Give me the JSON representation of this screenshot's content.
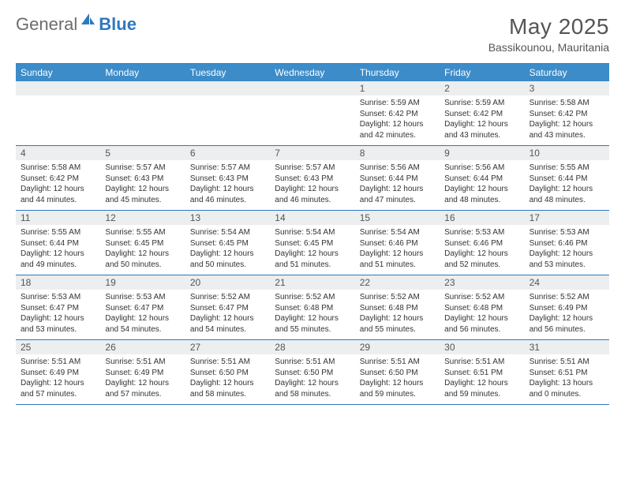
{
  "brand": {
    "general": "General",
    "blue": "Blue"
  },
  "header": {
    "title": "May 2025",
    "location": "Bassikounou, Mauritania"
  },
  "colors": {
    "accent": "#2f78bd",
    "header_bg": "#3c8cc9",
    "stripe": "#eceeef",
    "text": "#333333",
    "muted": "#555555"
  },
  "calendar": {
    "day_names": [
      "Sunday",
      "Monday",
      "Tuesday",
      "Wednesday",
      "Thursday",
      "Friday",
      "Saturday"
    ],
    "weeks": [
      [
        null,
        null,
        null,
        null,
        {
          "d": "1",
          "sr": "5:59 AM",
          "ss": "6:42 PM",
          "dl": "12 hours and 42 minutes."
        },
        {
          "d": "2",
          "sr": "5:59 AM",
          "ss": "6:42 PM",
          "dl": "12 hours and 43 minutes."
        },
        {
          "d": "3",
          "sr": "5:58 AM",
          "ss": "6:42 PM",
          "dl": "12 hours and 43 minutes."
        }
      ],
      [
        {
          "d": "4",
          "sr": "5:58 AM",
          "ss": "6:42 PM",
          "dl": "12 hours and 44 minutes."
        },
        {
          "d": "5",
          "sr": "5:57 AM",
          "ss": "6:43 PM",
          "dl": "12 hours and 45 minutes."
        },
        {
          "d": "6",
          "sr": "5:57 AM",
          "ss": "6:43 PM",
          "dl": "12 hours and 46 minutes."
        },
        {
          "d": "7",
          "sr": "5:57 AM",
          "ss": "6:43 PM",
          "dl": "12 hours and 46 minutes."
        },
        {
          "d": "8",
          "sr": "5:56 AM",
          "ss": "6:44 PM",
          "dl": "12 hours and 47 minutes."
        },
        {
          "d": "9",
          "sr": "5:56 AM",
          "ss": "6:44 PM",
          "dl": "12 hours and 48 minutes."
        },
        {
          "d": "10",
          "sr": "5:55 AM",
          "ss": "6:44 PM",
          "dl": "12 hours and 48 minutes."
        }
      ],
      [
        {
          "d": "11",
          "sr": "5:55 AM",
          "ss": "6:44 PM",
          "dl": "12 hours and 49 minutes."
        },
        {
          "d": "12",
          "sr": "5:55 AM",
          "ss": "6:45 PM",
          "dl": "12 hours and 50 minutes."
        },
        {
          "d": "13",
          "sr": "5:54 AM",
          "ss": "6:45 PM",
          "dl": "12 hours and 50 minutes."
        },
        {
          "d": "14",
          "sr": "5:54 AM",
          "ss": "6:45 PM",
          "dl": "12 hours and 51 minutes."
        },
        {
          "d": "15",
          "sr": "5:54 AM",
          "ss": "6:46 PM",
          "dl": "12 hours and 51 minutes."
        },
        {
          "d": "16",
          "sr": "5:53 AM",
          "ss": "6:46 PM",
          "dl": "12 hours and 52 minutes."
        },
        {
          "d": "17",
          "sr": "5:53 AM",
          "ss": "6:46 PM",
          "dl": "12 hours and 53 minutes."
        }
      ],
      [
        {
          "d": "18",
          "sr": "5:53 AM",
          "ss": "6:47 PM",
          "dl": "12 hours and 53 minutes."
        },
        {
          "d": "19",
          "sr": "5:53 AM",
          "ss": "6:47 PM",
          "dl": "12 hours and 54 minutes."
        },
        {
          "d": "20",
          "sr": "5:52 AM",
          "ss": "6:47 PM",
          "dl": "12 hours and 54 minutes."
        },
        {
          "d": "21",
          "sr": "5:52 AM",
          "ss": "6:48 PM",
          "dl": "12 hours and 55 minutes."
        },
        {
          "d": "22",
          "sr": "5:52 AM",
          "ss": "6:48 PM",
          "dl": "12 hours and 55 minutes."
        },
        {
          "d": "23",
          "sr": "5:52 AM",
          "ss": "6:48 PM",
          "dl": "12 hours and 56 minutes."
        },
        {
          "d": "24",
          "sr": "5:52 AM",
          "ss": "6:49 PM",
          "dl": "12 hours and 56 minutes."
        }
      ],
      [
        {
          "d": "25",
          "sr": "5:51 AM",
          "ss": "6:49 PM",
          "dl": "12 hours and 57 minutes."
        },
        {
          "d": "26",
          "sr": "5:51 AM",
          "ss": "6:49 PM",
          "dl": "12 hours and 57 minutes."
        },
        {
          "d": "27",
          "sr": "5:51 AM",
          "ss": "6:50 PM",
          "dl": "12 hours and 58 minutes."
        },
        {
          "d": "28",
          "sr": "5:51 AM",
          "ss": "6:50 PM",
          "dl": "12 hours and 58 minutes."
        },
        {
          "d": "29",
          "sr": "5:51 AM",
          "ss": "6:50 PM",
          "dl": "12 hours and 59 minutes."
        },
        {
          "d": "30",
          "sr": "5:51 AM",
          "ss": "6:51 PM",
          "dl": "12 hours and 59 minutes."
        },
        {
          "d": "31",
          "sr": "5:51 AM",
          "ss": "6:51 PM",
          "dl": "13 hours and 0 minutes."
        }
      ]
    ],
    "labels": {
      "sunrise": "Sunrise:",
      "sunset": "Sunset:",
      "daylight": "Daylight:"
    }
  }
}
